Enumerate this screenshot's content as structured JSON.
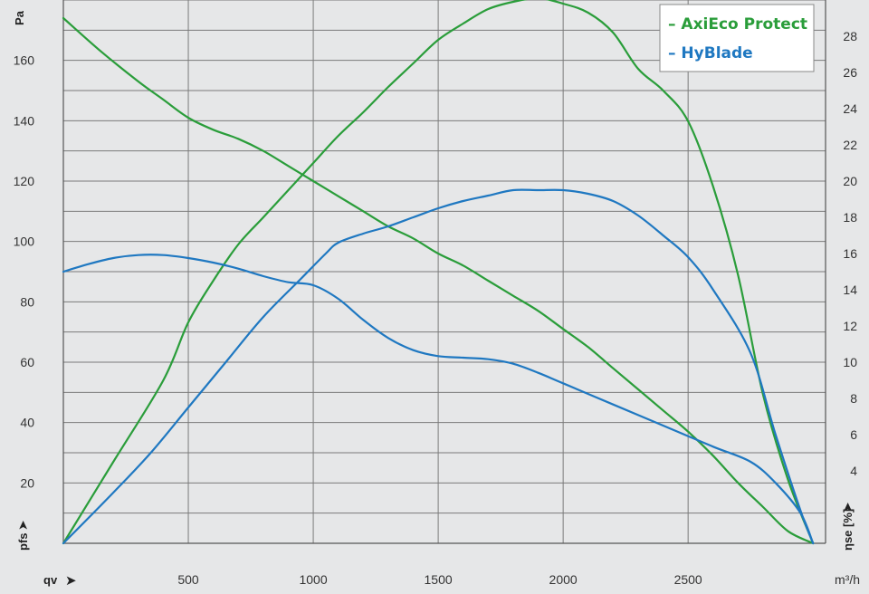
{
  "chart_data": {
    "type": "line",
    "xlabel": "qv",
    "x_unit": "m³/h",
    "ylabel_left": "pfs",
    "y_unit_left": "Pa",
    "ylabel_right": "ηse [%]",
    "xlim": [
      0,
      3050
    ],
    "x_ticks": [
      500,
      1000,
      1500,
      2000,
      2500
    ],
    "ylim_left": [
      0,
      180
    ],
    "y_ticks_left": [
      20,
      40,
      60,
      80,
      100,
      120,
      140,
      160
    ],
    "ylim_right": [
      0,
      30
    ],
    "y_ticks_right": [
      4,
      6,
      8,
      10,
      12,
      14,
      16,
      18,
      20,
      22,
      24,
      26,
      28
    ],
    "grid": true,
    "legend_position": "top-right",
    "series": [
      {
        "name": "AxiEco Protect",
        "color": "#2a9d3a",
        "kind": "pressure",
        "axis": "left",
        "x": [
          0,
          150,
          300,
          400,
          500,
          600,
          700,
          800,
          900,
          1000,
          1100,
          1200,
          1300,
          1400,
          1500,
          1600,
          1700,
          1800,
          1900,
          2000,
          2100,
          2200,
          2300,
          2400,
          2500,
          2600,
          2700,
          2800,
          2900,
          3000
        ],
        "y": [
          174,
          163,
          153,
          147,
          141,
          137,
          134,
          130,
          125,
          120,
          115,
          110,
          105,
          101,
          96,
          92,
          87,
          82,
          77,
          71,
          65,
          58,
          51,
          44,
          37,
          29,
          20,
          12,
          4,
          0
        ]
      },
      {
        "name": "AxiEco Protect",
        "color": "#2a9d3a",
        "kind": "efficiency",
        "axis": "right",
        "x": [
          0,
          200,
          400,
          500,
          600,
          700,
          800,
          900,
          1000,
          1100,
          1200,
          1300,
          1400,
          1500,
          1600,
          1700,
          1800,
          1900,
          2000,
          2100,
          2200,
          2300,
          2400,
          2500,
          2600,
          2700,
          2800,
          2900,
          3000
        ],
        "y": [
          0,
          4.5,
          9,
          12.2,
          14.5,
          16.5,
          18,
          19.5,
          21,
          22.5,
          23.8,
          25.2,
          26.5,
          27.8,
          28.7,
          29.5,
          29.9,
          30.1,
          29.8,
          29.3,
          28.2,
          26.2,
          25,
          23.3,
          19.7,
          14.8,
          8.2,
          3.5,
          0
        ]
      },
      {
        "name": "HyBlade",
        "color": "#1f78c1",
        "kind": "pressure",
        "axis": "left",
        "x": [
          0,
          100,
          200,
          300,
          400,
          500,
          600,
          700,
          800,
          900,
          1000,
          1100,
          1200,
          1300,
          1400,
          1500,
          1600,
          1700,
          1800,
          1900,
          2000,
          2200,
          2400,
          2600,
          2750,
          2850,
          2950,
          3000
        ],
        "y": [
          90,
          92.5,
          94.5,
          95.5,
          95.5,
          94.5,
          93,
          91,
          88.5,
          86.5,
          85.5,
          81,
          74,
          68,
          64,
          62,
          61.5,
          61,
          59.5,
          56.5,
          53,
          46,
          39,
          32,
          27,
          20,
          10,
          0
        ]
      },
      {
        "name": "HyBlade",
        "color": "#1f78c1",
        "kind": "efficiency",
        "axis": "right",
        "x": [
          0,
          200,
          350,
          500,
          650,
          800,
          950,
          1050,
          1100,
          1200,
          1300,
          1400,
          1500,
          1600,
          1700,
          1800,
          1900,
          2000,
          2100,
          2200,
          2300,
          2400,
          2500,
          2600,
          2750,
          2850,
          2950,
          3000
        ],
        "y": [
          0,
          2.8,
          5,
          7.5,
          10,
          12.5,
          14.6,
          16,
          16.6,
          17.1,
          17.5,
          18,
          18.5,
          18.9,
          19.2,
          19.5,
          19.5,
          19.5,
          19.3,
          18.9,
          18.1,
          17,
          15.8,
          14,
          10.5,
          6,
          1.8,
          0
        ]
      }
    ]
  }
}
